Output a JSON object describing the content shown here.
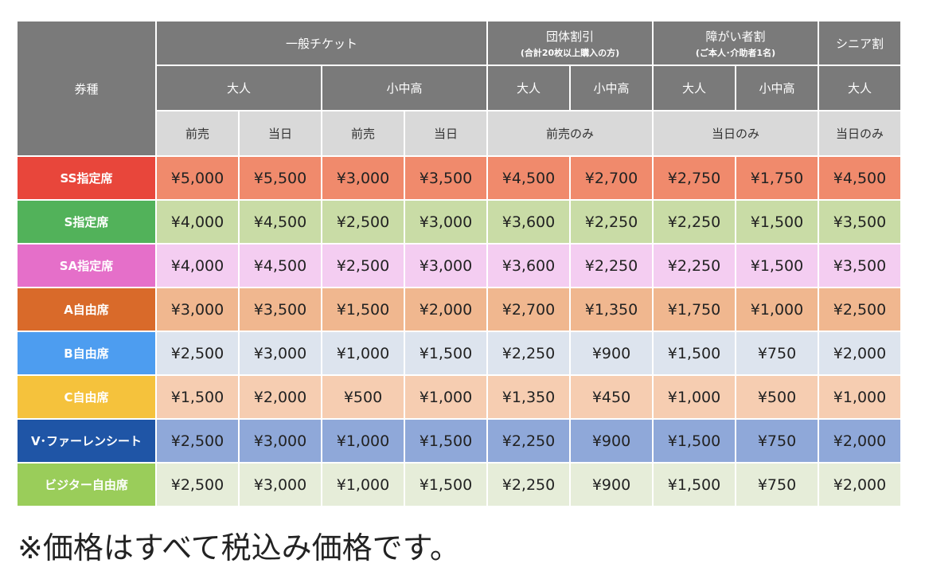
{
  "table": {
    "corner_label": "券種",
    "groups": [
      {
        "title": "一般チケット",
        "subtitle": ""
      },
      {
        "title": "団体割引",
        "subtitle": "(合計20枚以上購入の方)"
      },
      {
        "title": "障がい者割",
        "subtitle": "(ご本人･介助者1名)"
      },
      {
        "title": "シニア割",
        "subtitle": ""
      }
    ],
    "audience": [
      "大人",
      "小中高",
      "大人",
      "小中高",
      "大人",
      "小中高",
      "大人"
    ],
    "timing": [
      "前売",
      "当日",
      "前売",
      "当日",
      "前売のみ",
      "当日のみ",
      "当日のみ"
    ],
    "rows": [
      {
        "label": "SS指定席",
        "label_color": "#e8463b",
        "cell_color": "#f08a6c",
        "prices": [
          "¥5,000",
          "¥5,500",
          "¥3,000",
          "¥3,500",
          "¥4,500",
          "¥2,700",
          "¥2,750",
          "¥1,750",
          "¥4,500"
        ]
      },
      {
        "label": "S指定席",
        "label_color": "#52b25a",
        "cell_color": "#c9dca6",
        "prices": [
          "¥4,000",
          "¥4,500",
          "¥2,500",
          "¥3,000",
          "¥3,600",
          "¥2,250",
          "¥2,250",
          "¥1,500",
          "¥3,500"
        ]
      },
      {
        "label": "SA指定席",
        "label_color": "#e56fc9",
        "cell_color": "#f4cdf1",
        "prices": [
          "¥4,000",
          "¥4,500",
          "¥2,500",
          "¥3,000",
          "¥3,600",
          "¥2,250",
          "¥2,250",
          "¥1,500",
          "¥3,500"
        ]
      },
      {
        "label": "A自由席",
        "label_color": "#d96a2a",
        "cell_color": "#f0b78f",
        "prices": [
          "¥3,000",
          "¥3,500",
          "¥1,500",
          "¥2,000",
          "¥2,700",
          "¥1,350",
          "¥1,750",
          "¥1,000",
          "¥2,500"
        ]
      },
      {
        "label": "B自由席",
        "label_color": "#4d9df0",
        "cell_color": "#dde4ee",
        "prices": [
          "¥2,500",
          "¥3,000",
          "¥1,000",
          "¥1,500",
          "¥2,250",
          "¥900",
          "¥1,500",
          "¥750",
          "¥2,000"
        ]
      },
      {
        "label": "C自由席",
        "label_color": "#f5c23c",
        "cell_color": "#f6cdb1",
        "prices": [
          "¥1,500",
          "¥2,000",
          "¥500",
          "¥1,000",
          "¥1,350",
          "¥450",
          "¥1,000",
          "¥500",
          "¥1,000"
        ]
      },
      {
        "label": "V･ファーレンシート",
        "label_color": "#1f55a6",
        "cell_color": "#8fa8d9",
        "prices": [
          "¥2,500",
          "¥3,000",
          "¥1,000",
          "¥1,500",
          "¥2,250",
          "¥900",
          "¥1,500",
          "¥750",
          "¥2,000"
        ]
      },
      {
        "label": "ビジター自由席",
        "label_color": "#9acd5a",
        "cell_color": "#e6edd9",
        "prices": [
          "¥2,500",
          "¥3,000",
          "¥1,000",
          "¥1,500",
          "¥2,250",
          "¥900",
          "¥1,500",
          "¥750",
          "¥2,000"
        ]
      }
    ]
  },
  "note": "※価格はすべて税込み価格です。"
}
